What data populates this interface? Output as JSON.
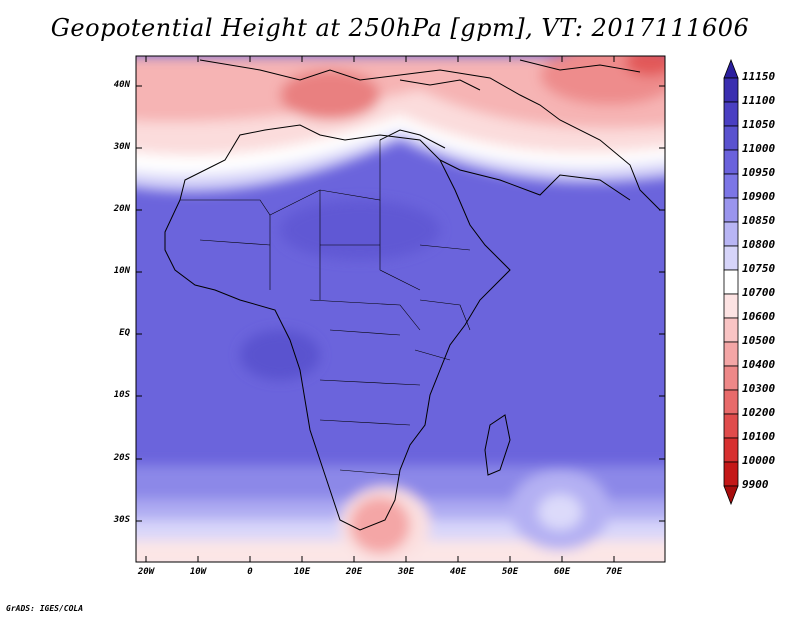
{
  "title": "Geopotential Height at 250hPa [gpm], VT: 2017111606",
  "footer": "GrADS: IGES/COLA",
  "lat_labels": [
    "40N",
    "30N",
    "20N",
    "10N",
    "EQ",
    "10S",
    "20S",
    "30S"
  ],
  "lon_labels": [
    "20W",
    "10W",
    "0",
    "10E",
    "20E",
    "30E",
    "40E",
    "50E",
    "60E",
    "70E"
  ],
  "colorbar": {
    "levels": [
      "11150",
      "11100",
      "11050",
      "11000",
      "10950",
      "10900",
      "10850",
      "10800",
      "10750",
      "10700",
      "10600",
      "10500",
      "10400",
      "10300",
      "10200",
      "10100",
      "10000",
      "9900"
    ],
    "colors": [
      "#2b1f9e",
      "#3a2eb0",
      "#4a3fc2",
      "#5a52cf",
      "#6a62dc",
      "#7c76e6",
      "#9a95ee",
      "#b8b5f4",
      "#d6d4f9",
      "#ffffff",
      "#fde3e3",
      "#f9c4c4",
      "#f4a6a6",
      "#ee8888",
      "#e86a6a",
      "#e04c4c",
      "#d73030",
      "#c41818",
      "#a80d0d"
    ]
  }
}
